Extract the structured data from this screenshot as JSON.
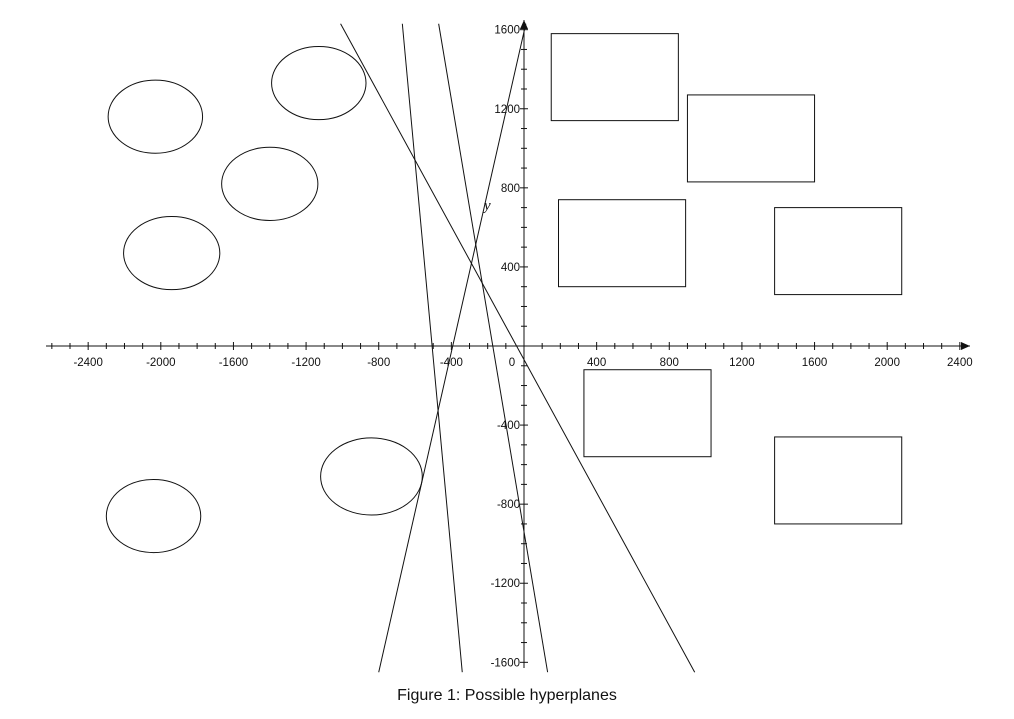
{
  "figure": {
    "caption": "Figure 1: Possible hyperplanes",
    "y_axis_label": "y",
    "x_ticks": [
      "-2400",
      "-2000",
      "-1600",
      "-1200",
      "-800",
      "-400",
      "0",
      "400",
      "800",
      "1200",
      "1600",
      "2000",
      "2400"
    ],
    "y_ticks": [
      "1600",
      "1200",
      "800",
      "400",
      "-400",
      "-800",
      "-1200",
      "-1600"
    ]
  },
  "chart_data": {
    "type": "scatter",
    "xlim": [
      -2600,
      2400
    ],
    "ylim": [
      -1650,
      1630
    ],
    "grid": false,
    "circles": [
      {
        "cx": -2030,
        "cy": 1160,
        "rx": 260,
        "ry": 185
      },
      {
        "cx": -1130,
        "cy": 1330,
        "rx": 260,
        "ry": 185
      },
      {
        "cx": -1400,
        "cy": 820,
        "rx": 265,
        "ry": 185
      },
      {
        "cx": -1940,
        "cy": 470,
        "rx": 265,
        "ry": 185
      },
      {
        "cx": -2040,
        "cy": -860,
        "rx": 260,
        "ry": 185
      },
      {
        "cx": -840,
        "cy": -660,
        "rx": 280,
        "ry": 195
      }
    ],
    "rectangles": [
      {
        "x0": 150,
        "y0": 1140,
        "x1": 850,
        "y1": 1580
      },
      {
        "x0": 900,
        "y0": 830,
        "x1": 1600,
        "y1": 1270
      },
      {
        "x0": 190,
        "y0": 300,
        "x1": 890,
        "y1": 740
      },
      {
        "x0": 1380,
        "y0": 260,
        "x1": 2080,
        "y1": 700
      },
      {
        "x0": 330,
        "y0": -560,
        "x1": 1030,
        "y1": -120
      },
      {
        "x0": 1380,
        "y0": -900,
        "x1": 2080,
        "y1": -460
      }
    ],
    "lines": [
      {
        "x1": -1010,
        "y1": 1630,
        "x2": 940,
        "y2": -1650
      },
      {
        "x1": -670,
        "y1": 1630,
        "x2": -340,
        "y2": -1650
      },
      {
        "x1": -470,
        "y1": 1630,
        "x2": 130,
        "y2": -1650
      },
      {
        "x1": 10,
        "y1": 1630,
        "x2": -800,
        "y2": -1650
      }
    ]
  }
}
